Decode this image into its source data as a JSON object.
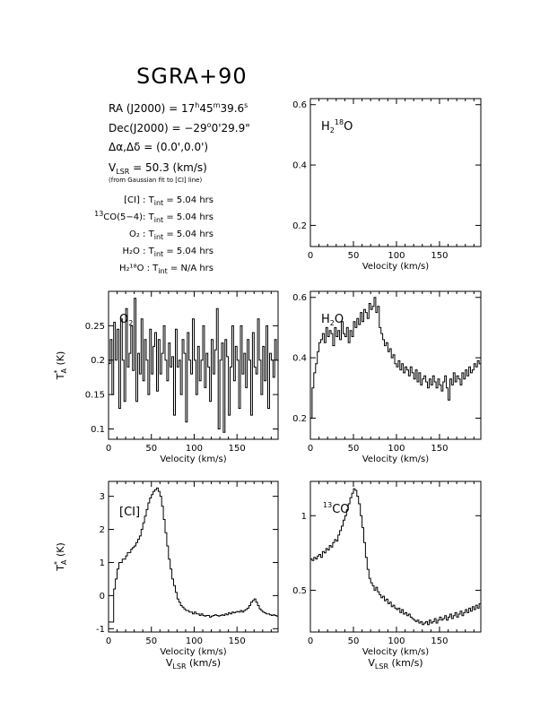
{
  "figure": {
    "title": "SGRA+90",
    "info": {
      "ra_prefix": "RA (J2000) =  17",
      "ra_h": "h",
      "ra_mid": "45",
      "ra_m": "m",
      "ra_sec": "39.6",
      "ra_s": "s",
      "dec_prefix": "Dec(J2000) = −29",
      "dec_deg": "o",
      "dec_rest": "0'29.9\"",
      "offset": "Δα,Δδ = (0.0',0.0')",
      "vlsr_v": "V",
      "vlsr_sub": "LSR",
      "vlsr_value": " = 50.3 (km/s)",
      "vlsr_note": "(from Gaussian fit to [CI] line)",
      "tint_rows": [
        {
          "pre_sup": "",
          "label": "[CI] : T",
          "sub": "int",
          "value": " = 5.04 hrs"
        },
        {
          "pre_sup": "13",
          "label": "CO(5−4): T",
          "sub": "int",
          "value": " = 5.04 hrs"
        },
        {
          "pre_sup": "",
          "label": "O₂ : T",
          "sub": "int",
          "value": " = 5.04 hrs"
        },
        {
          "pre_sup": "",
          "label": "H₂O : T",
          "sub": "int",
          "value": " = 5.04 hrs"
        },
        {
          "pre_sup": "",
          "label": "H₂¹⁸O : T",
          "sub": "int",
          "value": " = N/A hrs"
        }
      ]
    }
  },
  "chart_data": [
    {
      "id": "h218o",
      "type": "line",
      "label": "H₂¹⁸O",
      "xlabel": "Velocity (km/s)",
      "xlabel2": "",
      "ylabel": "",
      "xlim": [
        0,
        198
      ],
      "ylim": [
        0.13,
        0.62
      ],
      "xticks": [
        0,
        50,
        100,
        150
      ],
      "yticks": [
        0.2,
        0.4,
        0.6
      ],
      "x": [],
      "y": []
    },
    {
      "id": "o2",
      "type": "line",
      "label": "O₂",
      "xlabel": "Velocity (km/s)",
      "xlabel2": "",
      "ylabel": "T*A (K)",
      "xlim": [
        0,
        198
      ],
      "ylim": [
        0.085,
        0.3
      ],
      "xticks": [
        0,
        50,
        100,
        150
      ],
      "yticks": [
        0.1,
        0.15,
        0.2,
        0.25
      ],
      "x": [
        0,
        2,
        4,
        6,
        8,
        10,
        12,
        14,
        16,
        18,
        20,
        22,
        24,
        26,
        28,
        30,
        32,
        34,
        36,
        38,
        40,
        42,
        44,
        46,
        48,
        50,
        52,
        54,
        56,
        58,
        60,
        62,
        64,
        66,
        68,
        70,
        72,
        74,
        76,
        78,
        80,
        82,
        84,
        86,
        88,
        90,
        92,
        94,
        96,
        98,
        100,
        102,
        104,
        106,
        108,
        110,
        112,
        114,
        116,
        118,
        120,
        122,
        124,
        126,
        128,
        130,
        132,
        134,
        136,
        138,
        140,
        142,
        144,
        146,
        148,
        150,
        152,
        154,
        156,
        158,
        160,
        162,
        164,
        166,
        168,
        170,
        172,
        174,
        176,
        178,
        180,
        182,
        184,
        186,
        188,
        190,
        192,
        194,
        196,
        198
      ],
      "y": [
        0.195,
        0.23,
        0.15,
        0.255,
        0.2,
        0.245,
        0.13,
        0.26,
        0.2,
        0.14,
        0.275,
        0.19,
        0.21,
        0.25,
        0.185,
        0.29,
        0.14,
        0.21,
        0.18,
        0.26,
        0.17,
        0.23,
        0.2,
        0.15,
        0.245,
        0.18,
        0.22,
        0.24,
        0.155,
        0.23,
        0.18,
        0.21,
        0.25,
        0.2,
        0.17,
        0.225,
        0.19,
        0.205,
        0.12,
        0.245,
        0.19,
        0.2,
        0.15,
        0.23,
        0.21,
        0.11,
        0.24,
        0.2,
        0.18,
        0.26,
        0.2,
        0.15,
        0.22,
        0.17,
        0.2,
        0.25,
        0.16,
        0.21,
        0.19,
        0.14,
        0.23,
        0.18,
        0.215,
        0.275,
        0.1,
        0.2,
        0.225,
        0.095,
        0.23,
        0.205,
        0.12,
        0.19,
        0.25,
        0.17,
        0.22,
        0.2,
        0.13,
        0.25,
        0.18,
        0.21,
        0.16,
        0.23,
        0.2,
        0.12,
        0.24,
        0.19,
        0.18,
        0.26,
        0.2,
        0.15,
        0.22,
        0.17,
        0.25,
        0.13,
        0.21,
        0.2,
        0.175,
        0.23,
        0.2,
        0.265
      ]
    },
    {
      "id": "h2o",
      "type": "line",
      "label": "H₂O",
      "xlabel": "Velocity (km/s)",
      "xlabel2": "",
      "ylabel": "",
      "xlim": [
        0,
        198
      ],
      "ylim": [
        0.13,
        0.62
      ],
      "xticks": [
        0,
        50,
        100,
        150
      ],
      "yticks": [
        0.2,
        0.4,
        0.6
      ],
      "x": [
        0,
        2,
        4,
        6,
        8,
        10,
        12,
        14,
        16,
        18,
        20,
        22,
        24,
        26,
        28,
        30,
        32,
        34,
        36,
        38,
        40,
        42,
        44,
        46,
        48,
        50,
        52,
        54,
        56,
        58,
        60,
        62,
        64,
        66,
        68,
        70,
        72,
        74,
        76,
        78,
        80,
        82,
        84,
        86,
        88,
        90,
        92,
        94,
        96,
        98,
        100,
        102,
        104,
        106,
        108,
        110,
        112,
        114,
        116,
        118,
        120,
        122,
        124,
        126,
        128,
        130,
        132,
        134,
        136,
        138,
        140,
        142,
        144,
        146,
        148,
        150,
        152,
        154,
        156,
        158,
        160,
        162,
        164,
        166,
        168,
        170,
        172,
        174,
        176,
        178,
        180,
        182,
        184,
        186,
        188,
        190,
        192,
        194,
        196,
        198
      ],
      "y": [
        0.2,
        0.3,
        0.35,
        0.38,
        0.42,
        0.45,
        0.46,
        0.48,
        0.45,
        0.5,
        0.47,
        0.49,
        0.48,
        0.44,
        0.5,
        0.47,
        0.49,
        0.46,
        0.52,
        0.48,
        0.47,
        0.5,
        0.45,
        0.49,
        0.47,
        0.52,
        0.5,
        0.53,
        0.51,
        0.55,
        0.52,
        0.56,
        0.55,
        0.53,
        0.58,
        0.56,
        0.57,
        0.6,
        0.55,
        0.57,
        0.5,
        0.48,
        0.46,
        0.44,
        0.45,
        0.42,
        0.43,
        0.4,
        0.41,
        0.38,
        0.37,
        0.39,
        0.36,
        0.38,
        0.35,
        0.37,
        0.36,
        0.34,
        0.37,
        0.35,
        0.33,
        0.36,
        0.32,
        0.35,
        0.31,
        0.33,
        0.34,
        0.32,
        0.3,
        0.33,
        0.31,
        0.34,
        0.32,
        0.3,
        0.33,
        0.31,
        0.29,
        0.32,
        0.34,
        0.3,
        0.26,
        0.33,
        0.31,
        0.35,
        0.32,
        0.34,
        0.33,
        0.31,
        0.35,
        0.33,
        0.36,
        0.34,
        0.37,
        0.35,
        0.36,
        0.38,
        0.37,
        0.39,
        0.38,
        0.4
      ]
    },
    {
      "id": "ci",
      "type": "line",
      "label": "[CI]",
      "xlabel": "Velocity (km/s)",
      "xlabel2": "V_LSR (km/s)",
      "ylabel": "T*A (K)",
      "xlim": [
        0,
        198
      ],
      "ylim": [
        -1.1,
        3.45
      ],
      "xticks": [
        0,
        50,
        100,
        150
      ],
      "yticks": [
        -1,
        0,
        1,
        2,
        3
      ],
      "x": [
        0,
        2,
        4,
        6,
        8,
        10,
        12,
        14,
        16,
        18,
        20,
        22,
        24,
        26,
        28,
        30,
        32,
        34,
        36,
        38,
        40,
        42,
        44,
        46,
        48,
        50,
        52,
        54,
        56,
        58,
        60,
        62,
        64,
        66,
        68,
        70,
        72,
        74,
        76,
        78,
        80,
        82,
        84,
        86,
        88,
        90,
        92,
        94,
        96,
        98,
        100,
        102,
        104,
        106,
        108,
        110,
        112,
        114,
        116,
        118,
        120,
        122,
        124,
        126,
        128,
        130,
        132,
        134,
        136,
        138,
        140,
        142,
        144,
        146,
        148,
        150,
        152,
        154,
        156,
        158,
        160,
        162,
        164,
        166,
        168,
        170,
        172,
        174,
        176,
        178,
        180,
        182,
        184,
        186,
        188,
        190,
        192,
        194,
        196,
        198
      ],
      "y": [
        -0.8,
        -0.8,
        -0.8,
        0.2,
        0.5,
        0.8,
        1.0,
        1.0,
        1.1,
        1.1,
        1.2,
        1.3,
        1.3,
        1.4,
        1.45,
        1.5,
        1.6,
        1.7,
        1.8,
        2.0,
        2.2,
        2.4,
        2.6,
        2.8,
        2.95,
        3.05,
        3.15,
        3.2,
        3.25,
        3.15,
        3.0,
        2.7,
        2.3,
        1.9,
        1.5,
        1.1,
        0.8,
        0.5,
        0.3,
        0.1,
        -0.1,
        -0.2,
        -0.3,
        -0.35,
        -0.4,
        -0.45,
        -0.45,
        -0.5,
        -0.5,
        -0.55,
        -0.5,
        -0.55,
        -0.55,
        -0.6,
        -0.55,
        -0.6,
        -0.62,
        -0.6,
        -0.6,
        -0.65,
        -0.62,
        -0.6,
        -0.58,
        -0.6,
        -0.62,
        -0.6,
        -0.58,
        -0.6,
        -0.55,
        -0.58,
        -0.52,
        -0.55,
        -0.5,
        -0.52,
        -0.5,
        -0.48,
        -0.5,
        -0.45,
        -0.5,
        -0.45,
        -0.42,
        -0.38,
        -0.3,
        -0.2,
        -0.15,
        -0.1,
        -0.2,
        -0.3,
        -0.4,
        -0.45,
        -0.5,
        -0.52,
        -0.55,
        -0.55,
        -0.58,
        -0.6,
        -0.58,
        -0.6,
        -0.62,
        -0.6
      ]
    },
    {
      "id": "13co",
      "type": "line",
      "label": "13CO",
      "xlabel": "Velocity (km/s)",
      "xlabel2": "V_LSR (km/s)",
      "ylabel": "",
      "xlim": [
        0,
        198
      ],
      "ylim": [
        0.22,
        1.23
      ],
      "xticks": [
        0,
        50,
        100,
        150
      ],
      "yticks": [
        0.5,
        1
      ],
      "x": [
        0,
        2,
        4,
        6,
        8,
        10,
        12,
        14,
        16,
        18,
        20,
        22,
        24,
        26,
        28,
        30,
        32,
        34,
        36,
        38,
        40,
        42,
        44,
        46,
        48,
        50,
        52,
        54,
        56,
        58,
        60,
        62,
        64,
        66,
        68,
        70,
        72,
        74,
        76,
        78,
        80,
        82,
        84,
        86,
        88,
        90,
        92,
        94,
        96,
        98,
        100,
        102,
        104,
        106,
        108,
        110,
        112,
        114,
        116,
        118,
        120,
        122,
        124,
        126,
        128,
        130,
        132,
        134,
        136,
        138,
        140,
        142,
        144,
        146,
        148,
        150,
        152,
        154,
        156,
        158,
        160,
        162,
        164,
        166,
        168,
        170,
        172,
        174,
        176,
        178,
        180,
        182,
        184,
        186,
        188,
        190,
        192,
        194,
        196,
        198
      ],
      "y": [
        0.71,
        0.7,
        0.72,
        0.71,
        0.73,
        0.74,
        0.72,
        0.76,
        0.75,
        0.78,
        0.77,
        0.8,
        0.79,
        0.82,
        0.84,
        0.83,
        0.87,
        0.9,
        0.93,
        0.97,
        1.0,
        1.04,
        1.08,
        1.12,
        1.15,
        1.18,
        1.17,
        1.13,
        1.08,
        1.0,
        0.92,
        0.82,
        0.72,
        0.64,
        0.58,
        0.55,
        0.53,
        0.5,
        0.52,
        0.49,
        0.47,
        0.45,
        0.46,
        0.43,
        0.44,
        0.41,
        0.42,
        0.39,
        0.4,
        0.38,
        0.37,
        0.38,
        0.35,
        0.37,
        0.34,
        0.35,
        0.33,
        0.34,
        0.32,
        0.31,
        0.3,
        0.29,
        0.3,
        0.28,
        0.29,
        0.27,
        0.28,
        0.29,
        0.27,
        0.3,
        0.28,
        0.29,
        0.31,
        0.28,
        0.3,
        0.32,
        0.3,
        0.31,
        0.33,
        0.3,
        0.32,
        0.34,
        0.31,
        0.33,
        0.35,
        0.32,
        0.34,
        0.36,
        0.33,
        0.35,
        0.37,
        0.35,
        0.38,
        0.36,
        0.39,
        0.37,
        0.4,
        0.38,
        0.41,
        0.4
      ]
    }
  ]
}
